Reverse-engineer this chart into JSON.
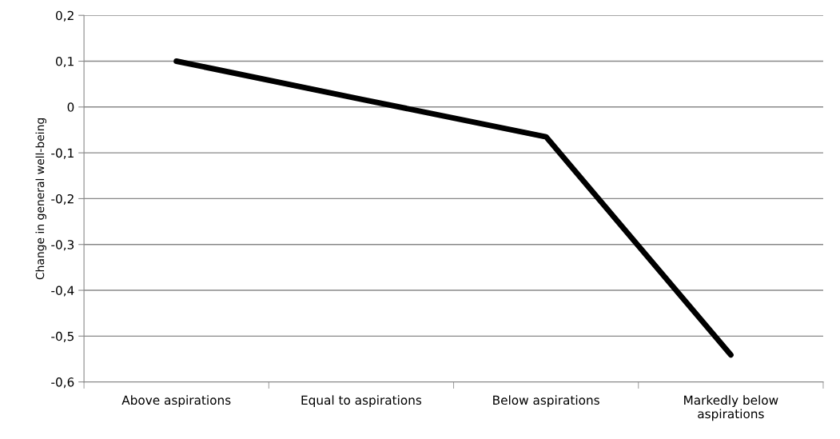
{
  "chart_data": {
    "type": "line",
    "ylabel": "Change in general well-being",
    "categories": [
      "Above aspirations",
      "Equal to aspirations",
      "Below aspirations",
      "Markedly below\naspirations"
    ],
    "series": [
      {
        "color": "#000000",
        "values": [
          0.1,
          0.017,
          -0.065,
          -0.541
        ]
      }
    ],
    "ylim": [
      -0.6,
      0.2
    ],
    "yticks": [
      {
        "value": -0.6,
        "label": "-0,6"
      },
      {
        "value": -0.5,
        "label": "-0,5"
      },
      {
        "value": -0.4,
        "label": "-0,4"
      },
      {
        "value": -0.3,
        "label": "-0,3"
      },
      {
        "value": -0.2,
        "label": "-0,2"
      },
      {
        "value": -0.1,
        "label": "-0,1"
      },
      {
        "value": 0,
        "label": "0"
      },
      {
        "value": 0.1,
        "label": "0,1"
      },
      {
        "value": 0.2,
        "label": "0,2"
      }
    ],
    "grid": "y",
    "marker": "none",
    "line_style": "solid"
  }
}
